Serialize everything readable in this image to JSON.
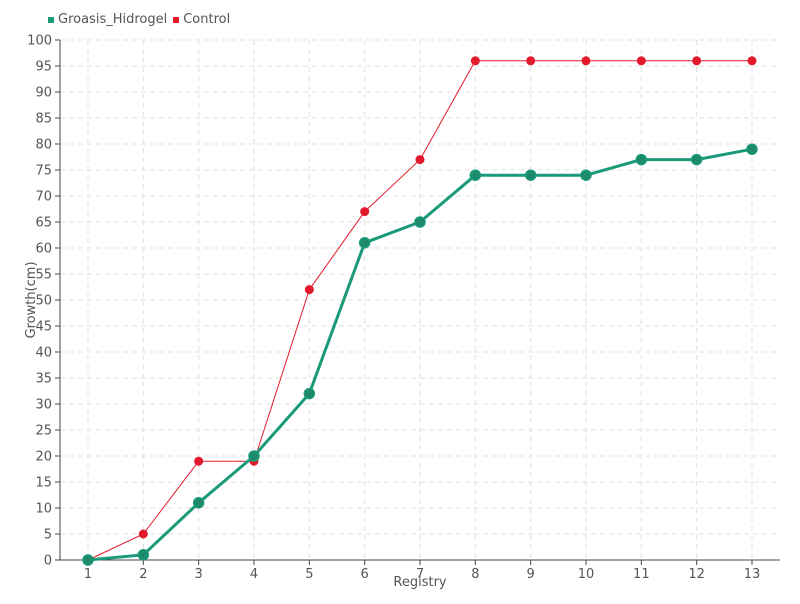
{
  "chart_data": {
    "type": "line",
    "title": "",
    "xlabel": "Registry",
    "ylabel": "Growth(cm)",
    "categories": [
      "1",
      "2",
      "3",
      "4",
      "5",
      "6",
      "7",
      "8",
      "9",
      "10",
      "11",
      "12",
      "13"
    ],
    "ylim": [
      0,
      100
    ],
    "ytick_step": 5,
    "grid": true,
    "legend_position": "top-left",
    "series": [
      {
        "name": "Groasis_Hidrogel",
        "color": "#1a9a78",
        "values": [
          0,
          1,
          11,
          20,
          32,
          61,
          65,
          74,
          74,
          74,
          77,
          77,
          79
        ]
      },
      {
        "name": "Control",
        "color": "#e31a2c",
        "values": [
          0,
          5,
          19,
          19,
          52,
          67,
          77,
          96,
          96,
          96,
          96,
          96,
          96
        ]
      }
    ]
  }
}
